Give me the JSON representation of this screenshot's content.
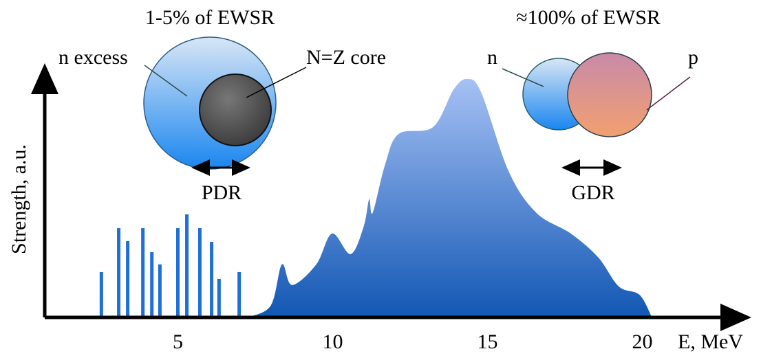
{
  "chart_data": {
    "type": "combo",
    "xlabel": "E, MeV",
    "ylabel": "Strength, a.u.",
    "xlim": [
      0.7,
      23.3
    ],
    "ylim": [
      0,
      100
    ],
    "xticks": [
      5,
      10,
      15,
      20
    ],
    "series": [
      {
        "type": "bar",
        "color": "#1f6fd8",
        "x": [
          2.53,
          3.09,
          3.38,
          3.87,
          4.16,
          4.42,
          5.0,
          5.29,
          5.71,
          6.09,
          6.33,
          6.98
        ],
        "values": [
          18.5,
          36.4,
          31.1,
          36.4,
          26.6,
          21.6,
          36.4,
          42.0,
          36.4,
          30.8,
          15.7,
          18.5
        ]
      },
      {
        "type": "area",
        "color": "#3a6fc9",
        "x": [
          7.24,
          8.0,
          8.36,
          8.69,
          9.47,
          9.98,
          10.58,
          11.0,
          11.18,
          11.29,
          11.69,
          12.13,
          13.24,
          13.91,
          14.36,
          14.8,
          15.69,
          16.58,
          17.69,
          18.58,
          19.24,
          19.91,
          20.31
        ],
        "values": [
          0,
          4.8,
          21.6,
          13.2,
          21.6,
          34.2,
          25.8,
          37,
          48.2,
          42.6,
          62.2,
          74.8,
          77.6,
          93,
          97.2,
          91.6,
          59.4,
          42.6,
          34.2,
          24.4,
          12.6,
          9.2,
          0
        ]
      }
    ],
    "annotations": [
      "1-5% of EWSR",
      "≈100% of EWSR",
      "n excess",
      "N=Z core",
      "n",
      "p",
      "PDR",
      "GDR"
    ]
  }
}
